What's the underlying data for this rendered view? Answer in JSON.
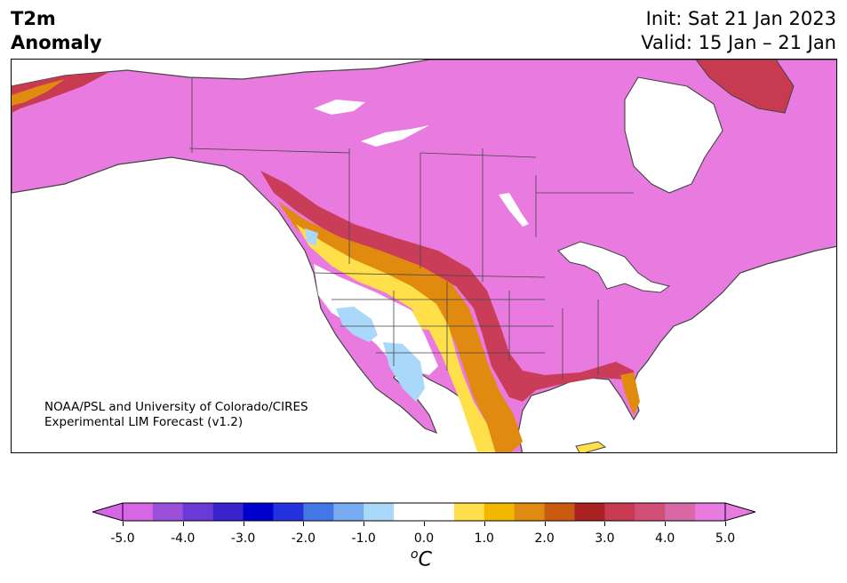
{
  "title": {
    "variable": "T2m",
    "subtitle": "Anomaly",
    "init": "Init: Sat 21 Jan 2023",
    "valid": "Valid: 15 Jan – 21 Jan"
  },
  "credit": {
    "line1": "NOAA/PSL and University of Colorado/CIRES",
    "line2": "Experimental LIM Forecast (v1.2)"
  },
  "colorbar": {
    "ticks": [
      "-5.0",
      "-4.0",
      "-3.0",
      "-2.0",
      "-1.0",
      "0.0",
      "1.0",
      "2.0",
      "3.0",
      "4.0",
      "5.0"
    ],
    "unit": "C",
    "unit_prefix": "o",
    "colors": [
      "#d666e6",
      "#9c4fd8",
      "#6a3ad8",
      "#3a22cc",
      "#0000cc",
      "#2233dd",
      "#4477e6",
      "#77aaf0",
      "#aad8fa",
      "#ffffff",
      "#ffffff",
      "#ffe04a",
      "#f2b800",
      "#e08a10",
      "#c85a12",
      "#aa2222",
      "#c83a50",
      "#d05078",
      "#d868a8",
      "#e87ae0"
    ]
  },
  "colors": {
    "anomaly_max": "#e87ae0",
    "warm_red": "#c83a50",
    "warm_orange": "#e08a10",
    "warm_yellow": "#ffe04a",
    "cool_blue": "#aad8fa",
    "ocean": "#ffffff",
    "borders": "#444444"
  }
}
